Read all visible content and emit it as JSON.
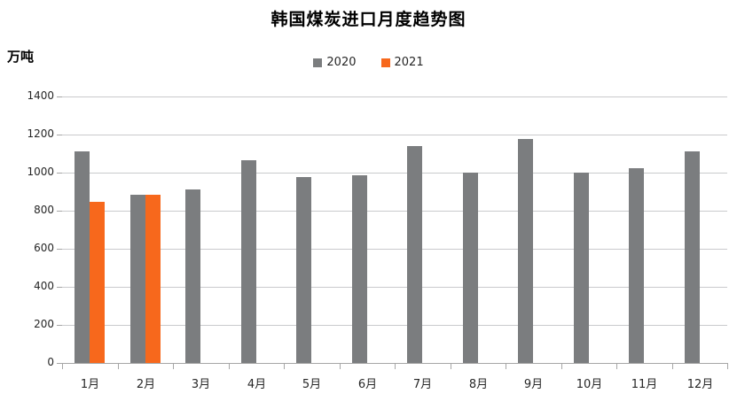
{
  "chart_data": {
    "type": "bar",
    "title": "韩国煤炭进口月度趋势图",
    "ylabel": "万吨",
    "xlabel": "",
    "categories": [
      "1月",
      "2月",
      "3月",
      "4月",
      "5月",
      "6月",
      "7月",
      "8月",
      "9月",
      "10月",
      "11月",
      "12月"
    ],
    "series": [
      {
        "name": "2020",
        "color": "#7b7d7f",
        "values": [
          1110,
          885,
          910,
          1065,
          975,
          985,
          1140,
          1000,
          1175,
          1000,
          1025,
          1110
        ]
      },
      {
        "name": "2021",
        "color": "#f7681c",
        "values": [
          845,
          885,
          null,
          null,
          null,
          null,
          null,
          null,
          null,
          null,
          null,
          null
        ]
      }
    ],
    "ylim": [
      0,
      1400
    ],
    "yticks": [
      0,
      200,
      400,
      600,
      800,
      1000,
      1200,
      1400
    ],
    "grid": true,
    "legend_position": "top-center",
    "colors": {
      "gridline": "#c9cacc",
      "axis": "#a6a6a6",
      "tick_label": "#262626",
      "title": "#000000",
      "background": "#ffffff"
    }
  }
}
